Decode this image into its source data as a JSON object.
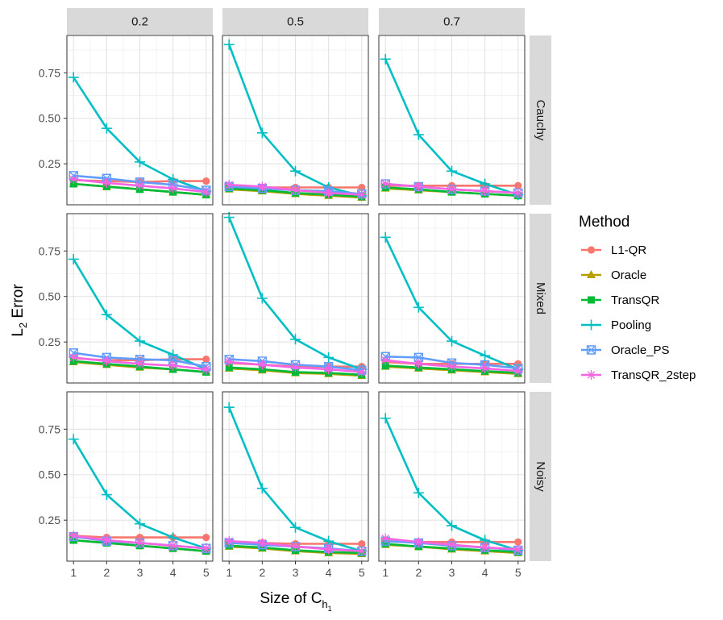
{
  "chart_data": {
    "type": "line",
    "facet_columns": [
      "0.2",
      "0.5",
      "0.7"
    ],
    "facet_rows": [
      "Cauchy",
      "Mixed",
      "Noisy"
    ],
    "x": [
      1,
      2,
      3,
      4,
      5
    ],
    "xlabel": {
      "base": "Size of C",
      "sub": "h",
      "subsub": "1"
    },
    "ylabel": {
      "base": "L",
      "sub": "2",
      "rest": " Error"
    },
    "ylim": [
      0.025,
      0.955
    ],
    "yticks": [
      0.25,
      0.5,
      0.75
    ],
    "ytick_labels": [
      "0.25",
      "0.50",
      "0.75"
    ],
    "xtick_labels": [
      "1",
      "2",
      "3",
      "4",
      "5"
    ],
    "grid": true,
    "legend": {
      "title": "Method",
      "position": "right",
      "entries": [
        {
          "name": "L1-QR",
          "color": "#F8766D",
          "marker": "circle"
        },
        {
          "name": "Oracle",
          "color": "#B79F00",
          "marker": "triangle"
        },
        {
          "name": "TransQR",
          "color": "#00BA38",
          "marker": "square"
        },
        {
          "name": "Pooling",
          "color": "#00BFC4",
          "marker": "plus"
        },
        {
          "name": "Oracle_PS",
          "color": "#619CFF",
          "marker": "square-cross"
        },
        {
          "name": "TransQR_2step",
          "color": "#F564E3",
          "marker": "asterisk"
        }
      ]
    },
    "panels": [
      {
        "row": "Cauchy",
        "col": "0.2",
        "series": {
          "L1-QR": [
            0.16,
            0.155,
            0.15,
            0.155,
            0.155
          ],
          "Oracle": [
            0.14,
            0.125,
            0.11,
            0.095,
            0.08
          ],
          "TransQR": [
            0.14,
            0.125,
            0.11,
            0.095,
            0.08
          ],
          "Pooling": [
            0.725,
            0.445,
            0.26,
            0.165,
            0.1
          ],
          "Oracle_PS": [
            0.185,
            0.17,
            0.15,
            0.135,
            0.105
          ],
          "TransQR_2step": [
            0.165,
            0.145,
            0.13,
            0.115,
            0.095
          ]
        }
      },
      {
        "row": "Cauchy",
        "col": "0.5",
        "series": {
          "L1-QR": [
            0.125,
            0.12,
            0.12,
            0.12,
            0.12
          ],
          "Oracle": [
            0.11,
            0.1,
            0.085,
            0.075,
            0.065
          ],
          "TransQR": [
            0.115,
            0.105,
            0.09,
            0.08,
            0.07
          ],
          "Pooling": [
            0.905,
            0.42,
            0.21,
            0.12,
            0.075
          ],
          "Oracle_PS": [
            0.125,
            0.115,
            0.105,
            0.1,
            0.085
          ],
          "TransQR_2step": [
            0.135,
            0.125,
            0.105,
            0.09,
            0.08
          ]
        }
      },
      {
        "row": "Cauchy",
        "col": "0.7",
        "series": {
          "L1-QR": [
            0.13,
            0.13,
            0.13,
            0.13,
            0.13
          ],
          "Oracle": [
            0.115,
            0.105,
            0.095,
            0.085,
            0.075
          ],
          "TransQR": [
            0.12,
            0.11,
            0.095,
            0.085,
            0.075
          ],
          "Pooling": [
            0.825,
            0.41,
            0.21,
            0.14,
            0.08
          ],
          "Oracle_PS": [
            0.14,
            0.125,
            0.11,
            0.1,
            0.09
          ],
          "TransQR_2step": [
            0.14,
            0.125,
            0.11,
            0.1,
            0.09
          ]
        }
      },
      {
        "row": "Mixed",
        "col": "0.2",
        "series": {
          "L1-QR": [
            0.16,
            0.15,
            0.15,
            0.155,
            0.155
          ],
          "Oracle": [
            0.14,
            0.125,
            0.11,
            0.1,
            0.085
          ],
          "TransQR": [
            0.145,
            0.13,
            0.115,
            0.1,
            0.085
          ],
          "Pooling": [
            0.705,
            0.4,
            0.255,
            0.18,
            0.1
          ],
          "Oracle_PS": [
            0.19,
            0.165,
            0.155,
            0.15,
            0.115
          ],
          "TransQR_2step": [
            0.165,
            0.145,
            0.13,
            0.12,
            0.1
          ]
        }
      },
      {
        "row": "Mixed",
        "col": "0.5",
        "series": {
          "L1-QR": [
            0.135,
            0.125,
            0.115,
            0.115,
            0.115
          ],
          "Oracle": [
            0.105,
            0.095,
            0.08,
            0.075,
            0.065
          ],
          "TransQR": [
            0.11,
            0.1,
            0.085,
            0.08,
            0.07
          ],
          "Pooling": [
            0.935,
            0.49,
            0.265,
            0.165,
            0.1
          ],
          "Oracle_PS": [
            0.155,
            0.145,
            0.125,
            0.115,
            0.095
          ],
          "TransQR_2step": [
            0.14,
            0.125,
            0.11,
            0.1,
            0.085
          ]
        }
      },
      {
        "row": "Mixed",
        "col": "0.7",
        "series": {
          "L1-QR": [
            0.14,
            0.13,
            0.13,
            0.13,
            0.13
          ],
          "Oracle": [
            0.115,
            0.105,
            0.095,
            0.085,
            0.075
          ],
          "TransQR": [
            0.12,
            0.11,
            0.1,
            0.09,
            0.08
          ],
          "Pooling": [
            0.825,
            0.44,
            0.255,
            0.175,
            0.1
          ],
          "Oracle_PS": [
            0.17,
            0.165,
            0.135,
            0.125,
            0.105
          ],
          "TransQR_2step": [
            0.15,
            0.13,
            0.115,
            0.105,
            0.09
          ]
        }
      },
      {
        "row": "Noisy",
        "col": "0.2",
        "series": {
          "L1-QR": [
            0.165,
            0.155,
            0.155,
            0.155,
            0.155
          ],
          "Oracle": [
            0.14,
            0.125,
            0.11,
            0.095,
            0.08
          ],
          "TransQR": [
            0.14,
            0.125,
            0.11,
            0.095,
            0.08
          ],
          "Pooling": [
            0.695,
            0.39,
            0.23,
            0.155,
            0.095
          ],
          "Oracle_PS": [
            0.16,
            0.135,
            0.125,
            0.11,
            0.095
          ],
          "TransQR_2step": [
            0.165,
            0.14,
            0.125,
            0.11,
            0.095
          ]
        }
      },
      {
        "row": "Noisy",
        "col": "0.5",
        "series": {
          "L1-QR": [
            0.13,
            0.125,
            0.12,
            0.12,
            0.12
          ],
          "Oracle": [
            0.105,
            0.095,
            0.08,
            0.07,
            0.065
          ],
          "TransQR": [
            0.11,
            0.1,
            0.085,
            0.075,
            0.07
          ],
          "Pooling": [
            0.87,
            0.425,
            0.21,
            0.135,
            0.08
          ],
          "Oracle_PS": [
            0.125,
            0.115,
            0.105,
            0.095,
            0.08
          ],
          "TransQR_2step": [
            0.135,
            0.125,
            0.105,
            0.09,
            0.08
          ]
        }
      },
      {
        "row": "Noisy",
        "col": "0.7",
        "series": {
          "L1-QR": [
            0.135,
            0.13,
            0.13,
            0.13,
            0.13
          ],
          "Oracle": [
            0.115,
            0.105,
            0.09,
            0.08,
            0.07
          ],
          "TransQR": [
            0.12,
            0.105,
            0.095,
            0.085,
            0.075
          ],
          "Pooling": [
            0.81,
            0.4,
            0.22,
            0.14,
            0.085
          ],
          "Oracle_PS": [
            0.135,
            0.125,
            0.11,
            0.1,
            0.085
          ],
          "TransQR_2step": [
            0.15,
            0.13,
            0.115,
            0.1,
            0.09
          ]
        }
      }
    ]
  }
}
